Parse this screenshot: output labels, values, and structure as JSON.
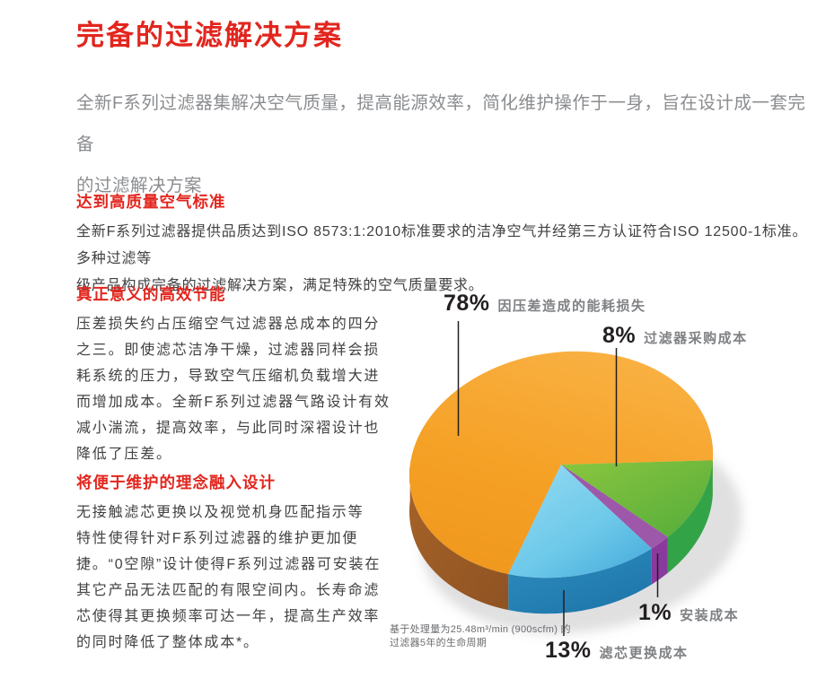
{
  "page": {
    "title": "完备的过滤解决方案",
    "subtitle": "全新F系列过滤器集解决空气质量，提高能源效率，简化维护操作于一身，旨在设计成一套完备\n的过滤解决方案"
  },
  "sections": [
    {
      "heading": "达到高质量空气标准",
      "body": "全新F系列过滤器提供品质达到ISO 8573:1:2010标准要求的洁净空气并经第三方认证符合ISO 12500-1标准。多种过滤等\n级产品构成完备的过滤解决方案，满足特殊的空气质量要求。"
    },
    {
      "heading": "真正意义的高效节能",
      "body": "压差损失约占压缩空气过滤器总成本的四分\n之三。即使滤芯洁净干燥，过滤器同样会损\n耗系统的压力，导致空气压缩机负载增大进\n而增加成本。全新F系列过滤器气路设计有效\n减小湍流，提高效率，与此同时深褶设计也\n降低了压差。"
    },
    {
      "heading": "将便于维护的理念融入设计",
      "body": "无接触滤芯更换以及视觉机身匹配指示等\n特性使得针对F系列过滤器的维护更加便\n捷。“0空隙”设计使得F系列过滤器可安装在\n其它产品无法匹配的有限空间内。长寿命滤\n芯使得其更换频率可达一年，提高生产效率\n的同时降低了整体成本*。"
    }
  ],
  "chart": {
    "labels": [
      {
        "pct": "78%",
        "text": "因压差造成的能耗损失"
      },
      {
        "pct": "8%",
        "text": "过滤器采购成本"
      },
      {
        "pct": "1%",
        "text": "安装成本"
      },
      {
        "pct": "13%",
        "text": "滤芯更换成本"
      }
    ],
    "footnote": "基于处理量为25.48m³/min (900scfm) 的\n过滤器5年的生命周期"
  },
  "chart_data": {
    "type": "pie",
    "categories": [
      "因压差造成的能耗损失",
      "过滤器采购成本",
      "安装成本",
      "滤芯更换成本"
    ],
    "values": [
      78,
      8,
      1,
      13
    ],
    "unit": "%",
    "colors": [
      "#F49E22",
      "#7DC242",
      "#9C59A8",
      "#55BEE6"
    ],
    "style": "3d",
    "legend_position": "callout-labels",
    "footnote": "基于处理量为25.48m³/min (900scfm) 的过滤器5年的生命周期"
  },
  "colors": {
    "accent_red": "#E2261E",
    "body_text": "#414042",
    "subtitle_text": "#8A8C8F",
    "label_gray": "#7F8184",
    "pct_black": "#231F20"
  }
}
